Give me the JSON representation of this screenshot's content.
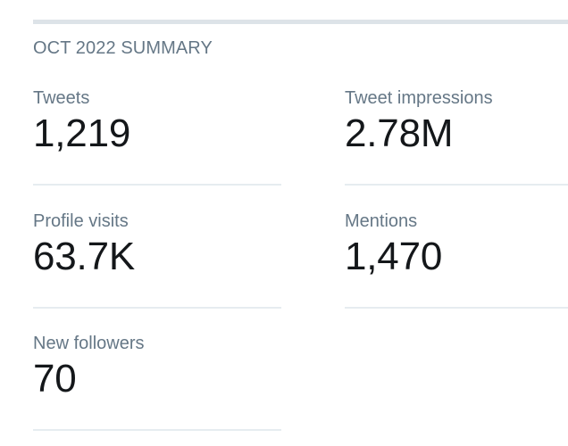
{
  "summary": {
    "title": "OCT 2022 SUMMARY"
  },
  "metrics": {
    "tweets": {
      "label": "Tweets",
      "value": "1,219"
    },
    "tweet_impressions": {
      "label": "Tweet impressions",
      "value": "2.78M"
    },
    "profile_visits": {
      "label": "Profile visits",
      "value": "63.7K"
    },
    "mentions": {
      "label": "Mentions",
      "value": "1,470"
    },
    "new_followers": {
      "label": "New followers",
      "value": "70"
    }
  },
  "colors": {
    "label_gray": "#657786",
    "value_dark": "#14171a",
    "divider": "#e6ecf0",
    "top_rule": "#dde3e8"
  }
}
